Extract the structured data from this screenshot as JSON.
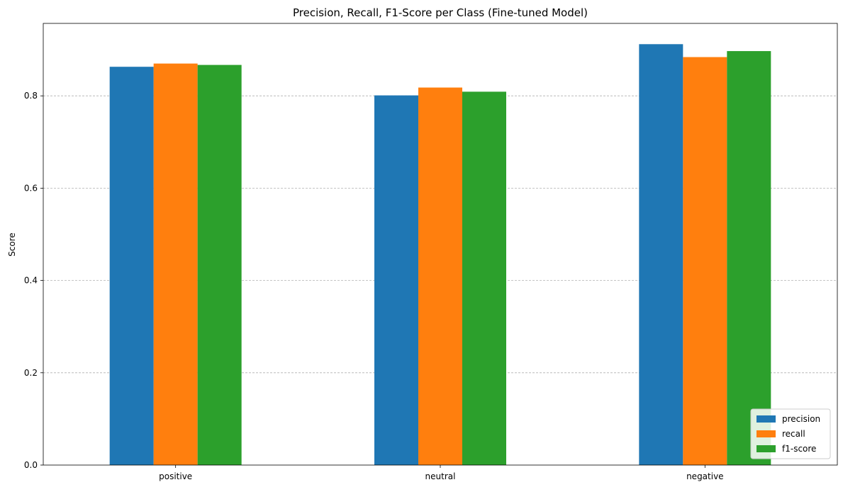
{
  "chart_data": {
    "type": "bar",
    "title": "Precision, Recall, F1-Score per Class (Fine-tuned Model)",
    "xlabel": "",
    "ylabel": "Score",
    "categories": [
      "positive",
      "neutral",
      "negative"
    ],
    "series": [
      {
        "name": "precision",
        "values": [
          0.863,
          0.801,
          0.912
        ],
        "color": "#1f77b4"
      },
      {
        "name": "recall",
        "values": [
          0.87,
          0.818,
          0.884
        ],
        "color": "#ff7f0e"
      },
      {
        "name": "f1-score",
        "values": [
          0.867,
          0.809,
          0.897
        ],
        "color": "#2ca02c"
      }
    ],
    "ylim": [
      0,
      0.957
    ],
    "yticks": [
      "0.0",
      "0.2",
      "0.4",
      "0.6",
      "0.8"
    ],
    "ytick_values": [
      0,
      0.2,
      0.4,
      0.6,
      0.8
    ],
    "grid": "y-dashed",
    "legend_position": "lower-right"
  }
}
